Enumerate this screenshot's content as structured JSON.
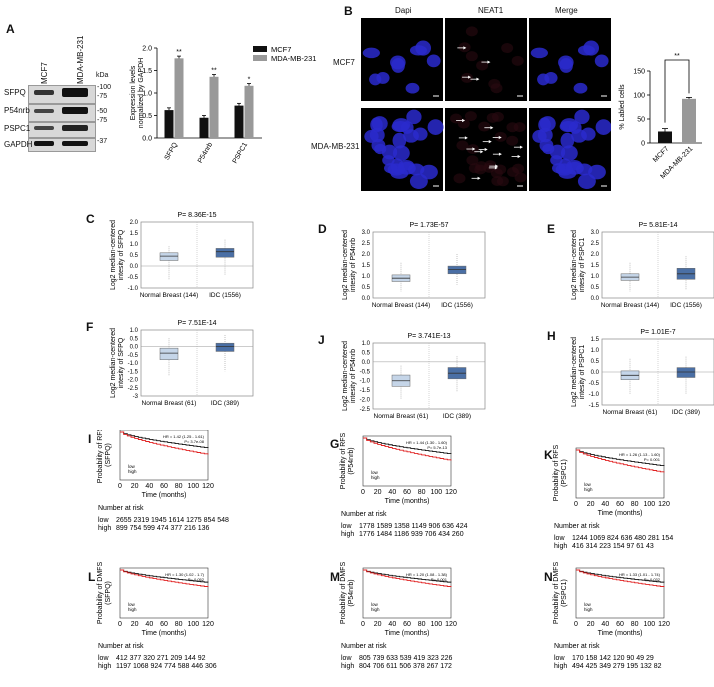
{
  "panel_letters": {
    "A": "A",
    "B": "B",
    "C": "C",
    "D": "D",
    "E": "E",
    "F": "F",
    "J": "J",
    "H": "H",
    "I": "I",
    "G": "G",
    "K": "K",
    "L": "L",
    "M": "M",
    "N": "N"
  },
  "western": {
    "lanes": [
      "MCF7",
      "MDA-MB-231"
    ],
    "proteins": [
      "SFPQ",
      "P54nrb",
      "PSPC1",
      "GAPDH"
    ],
    "kda_label": "kDa",
    "markers": [
      "100",
      "75",
      "50",
      "75",
      "37"
    ]
  },
  "chart_data": [
    {
      "type": "bar",
      "panel": "A",
      "categories": [
        "SFPQ",
        "P54nrb",
        "PSPC1"
      ],
      "series": [
        {
          "name": "MCF7",
          "color": "#111111",
          "values": [
            0.62,
            0.45,
            0.72
          ],
          "errors": [
            0.05,
            0.05,
            0.05
          ]
        },
        {
          "name": "MDA-MB-231",
          "color": "#999999",
          "values": [
            1.77,
            1.36,
            1.16
          ],
          "errors": [
            0.05,
            0.05,
            0.05
          ]
        }
      ],
      "significance": [
        "**",
        "**",
        "*"
      ],
      "ylabel": "Expression levels\nnormalized by GAPDH",
      "ylim": [
        0,
        2.0
      ],
      "yticks": [
        "0.0",
        "0.5",
        "1.0",
        "1.5",
        "2.0"
      ]
    },
    {
      "type": "bar",
      "panel": "B",
      "categories": [
        "MCF7",
        "MDA-MB-231"
      ],
      "values": [
        24,
        92
      ],
      "errors": [
        6,
        3
      ],
      "colors": [
        "#111111",
        "#999999"
      ],
      "significance": "**",
      "ylabel": "% Labled cells",
      "ylim": [
        0,
        150
      ],
      "yticks": [
        "0",
        "50",
        "100",
        "150"
      ]
    }
  ],
  "microscopy": {
    "columns": [
      "Dapi",
      "NEAT1",
      "Merge"
    ],
    "rows": [
      "MCF7",
      "MDA-MB-231"
    ]
  },
  "boxplots": [
    {
      "id": "C",
      "pval": "P= 8.36E-15",
      "ylabel": "Log2 median-centered\nintesity of SFPQ",
      "groups": [
        "Normal Breast (144)",
        "IDC (1556)"
      ],
      "yticks": [
        "2.0",
        "1.5",
        "1.0",
        "0.5",
        "0.0",
        "-0.5",
        "-1.0"
      ]
    },
    {
      "id": "D",
      "pval": "P= 1.73E-57",
      "ylabel": "Log2 median-centered\nintesity of P54nrb",
      "groups": [
        "Normal Breast (144)",
        "IDC (1556)"
      ],
      "yticks": [
        "3.0",
        "2.5",
        "2.0",
        "1.5",
        "1.0",
        "0.5",
        "0.0"
      ]
    },
    {
      "id": "E",
      "pval": "P= 5.81E-14",
      "ylabel": "Log2 median-centered\nintesity of PSPC1",
      "groups": [
        "Normal Breast (144)",
        "IDC (1556)"
      ],
      "yticks": [
        "3.0",
        "2.5",
        "2.0",
        "1.5",
        "1.0",
        "0.5",
        "0.0"
      ]
    },
    {
      "id": "F",
      "pval": "P= 7.51E-14",
      "ylabel": "Log2 median-centered\nintesity of SFPQ",
      "groups": [
        "Normal Breast (61)",
        "IDC (389)"
      ],
      "yticks": [
        "1.0",
        "0.5",
        "0.0",
        "-0.5",
        "-1.0",
        "-1.5",
        "-2.0",
        "-2.5",
        "-3"
      ]
    },
    {
      "id": "J",
      "pval": "P= 3.741E-13",
      "ylabel": "Log2 median-centered\nintesity of P54nrb",
      "groups": [
        "Normal Breast (61)",
        "IDC (389)"
      ],
      "yticks": [
        "1.0",
        "0.5",
        "0.0",
        "-0.5",
        "-1.0",
        "-1.5",
        "-2.0",
        "-2.5"
      ]
    },
    {
      "id": "H",
      "pval": "P= 1.01E-7",
      "ylabel": "Log2 median-centered\nintesity of PSPC1",
      "groups": [
        "Normal Breast (61)",
        "IDC (389)"
      ],
      "yticks": [
        "1.5",
        "1.0",
        "0.5",
        "0.0",
        "-0.5",
        "-1.0",
        "-1.5"
      ]
    }
  ],
  "km": [
    {
      "id": "I",
      "ylabel": "Probability of RFS\n(SFPQ)",
      "hr": "HR = 1.42 (1.25 - 1.61)",
      "p": "P= 3.7e-08",
      "xlabel": "Time (months)",
      "xticks": [
        "0",
        "20",
        "40",
        "60",
        "80",
        "100",
        "120"
      ],
      "risk_title": "Number at risk",
      "low_label": "low",
      "high_label": "high",
      "low": "2655 2319 1945 1614 1275 854 548",
      "high": "899 754 599 474 377 216 136"
    },
    {
      "id": "G",
      "ylabel": "Probability of RFS\n(P54nrb)",
      "hr": "HR = 1.44 (1.30 - 1.60)",
      "p": "P= 5.7e-13",
      "xlabel": "Time (months)",
      "xticks": [
        "0",
        "20",
        "40",
        "60",
        "80",
        "100",
        "120"
      ],
      "risk_title": "Number at risk",
      "low_label": "low",
      "high_label": "high",
      "low": "1778 1589 1358 1149 906 636 424",
      "high": "1776 1484 1186 939 706 434 260"
    },
    {
      "id": "K",
      "ylabel": "Probability of RFS\n(PSPC1)",
      "hr": "HR = 1.26 (1.13 - 1.60)",
      "p": "P= 0.001",
      "xlabel": "Time (months)",
      "xticks": [
        "0",
        "20",
        "40",
        "60",
        "80",
        "100",
        "120"
      ],
      "risk_title": "Number at risk",
      "low_label": "low",
      "high_label": "high",
      "low": "1244 1069 824 636 480 281 154",
      "high": "416 314 223 154 97 61 43"
    },
    {
      "id": "L",
      "ylabel": "Probability of DMFS\n(SFPQ)",
      "hr": "HR = 1.30 (1.02 - 1.7)",
      "p": "P= 0.052",
      "xlabel": "Time (months)",
      "xticks": [
        "0",
        "20",
        "40",
        "60",
        "80",
        "100",
        "120"
      ],
      "risk_title": "Number at risk",
      "low_label": "low",
      "high_label": "high",
      "low": "412 377 320 271 209 144 92",
      "high": "1197 1068 924 774 588 446 306"
    },
    {
      "id": "M",
      "ylabel": "Probability of DMFS\n(P54nrb)",
      "hr": "HR = 1.20 (1.08 - 1.38)",
      "p": "P= 0.001",
      "xlabel": "Time (months)",
      "xticks": [
        "0",
        "20",
        "40",
        "60",
        "80",
        "100",
        "120"
      ],
      "risk_title": "Number at risk",
      "low_label": "low",
      "high_label": "high",
      "low": "805 739 633 539 419 323 226",
      "high": "804 706 611 506 378 267 172"
    },
    {
      "id": "N",
      "ylabel": "Probability of DMFS\n(PSPC1)",
      "hr": "HR = 1.33 (1.01 - 1.74)",
      "p": "P= 0.032",
      "xlabel": "Time (months)",
      "xticks": [
        "0",
        "20",
        "40",
        "60",
        "80",
        "100",
        "120"
      ],
      "risk_title": "Number at risk",
      "low_label": "low",
      "high_label": "high",
      "low": "170 158 142 120 90 49 29",
      "high": "494 425 349 279 195 132 82"
    }
  ]
}
